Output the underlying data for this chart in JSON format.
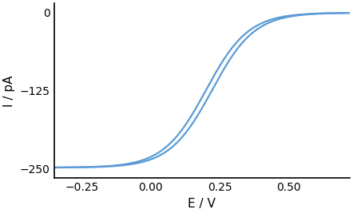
{
  "title": "",
  "xlabel": "E / V",
  "ylabel": "I / pA",
  "xlim": [
    -0.35,
    0.72
  ],
  "ylim": [
    -265,
    15
  ],
  "xticks": [
    -0.25,
    0,
    0.25,
    0.5
  ],
  "yticks": [
    0,
    -125,
    -250
  ],
  "line_color": "#5b9bd5",
  "line_width": 1.6,
  "E_half": 0.2,
  "I_lim": -248,
  "sigmoid_steepness": 13.0,
  "cv_shift": 0.022,
  "background_color": "#ffffff",
  "spine_color": "#000000",
  "tick_label_fontsize": 10,
  "axis_label_fontsize": 11
}
